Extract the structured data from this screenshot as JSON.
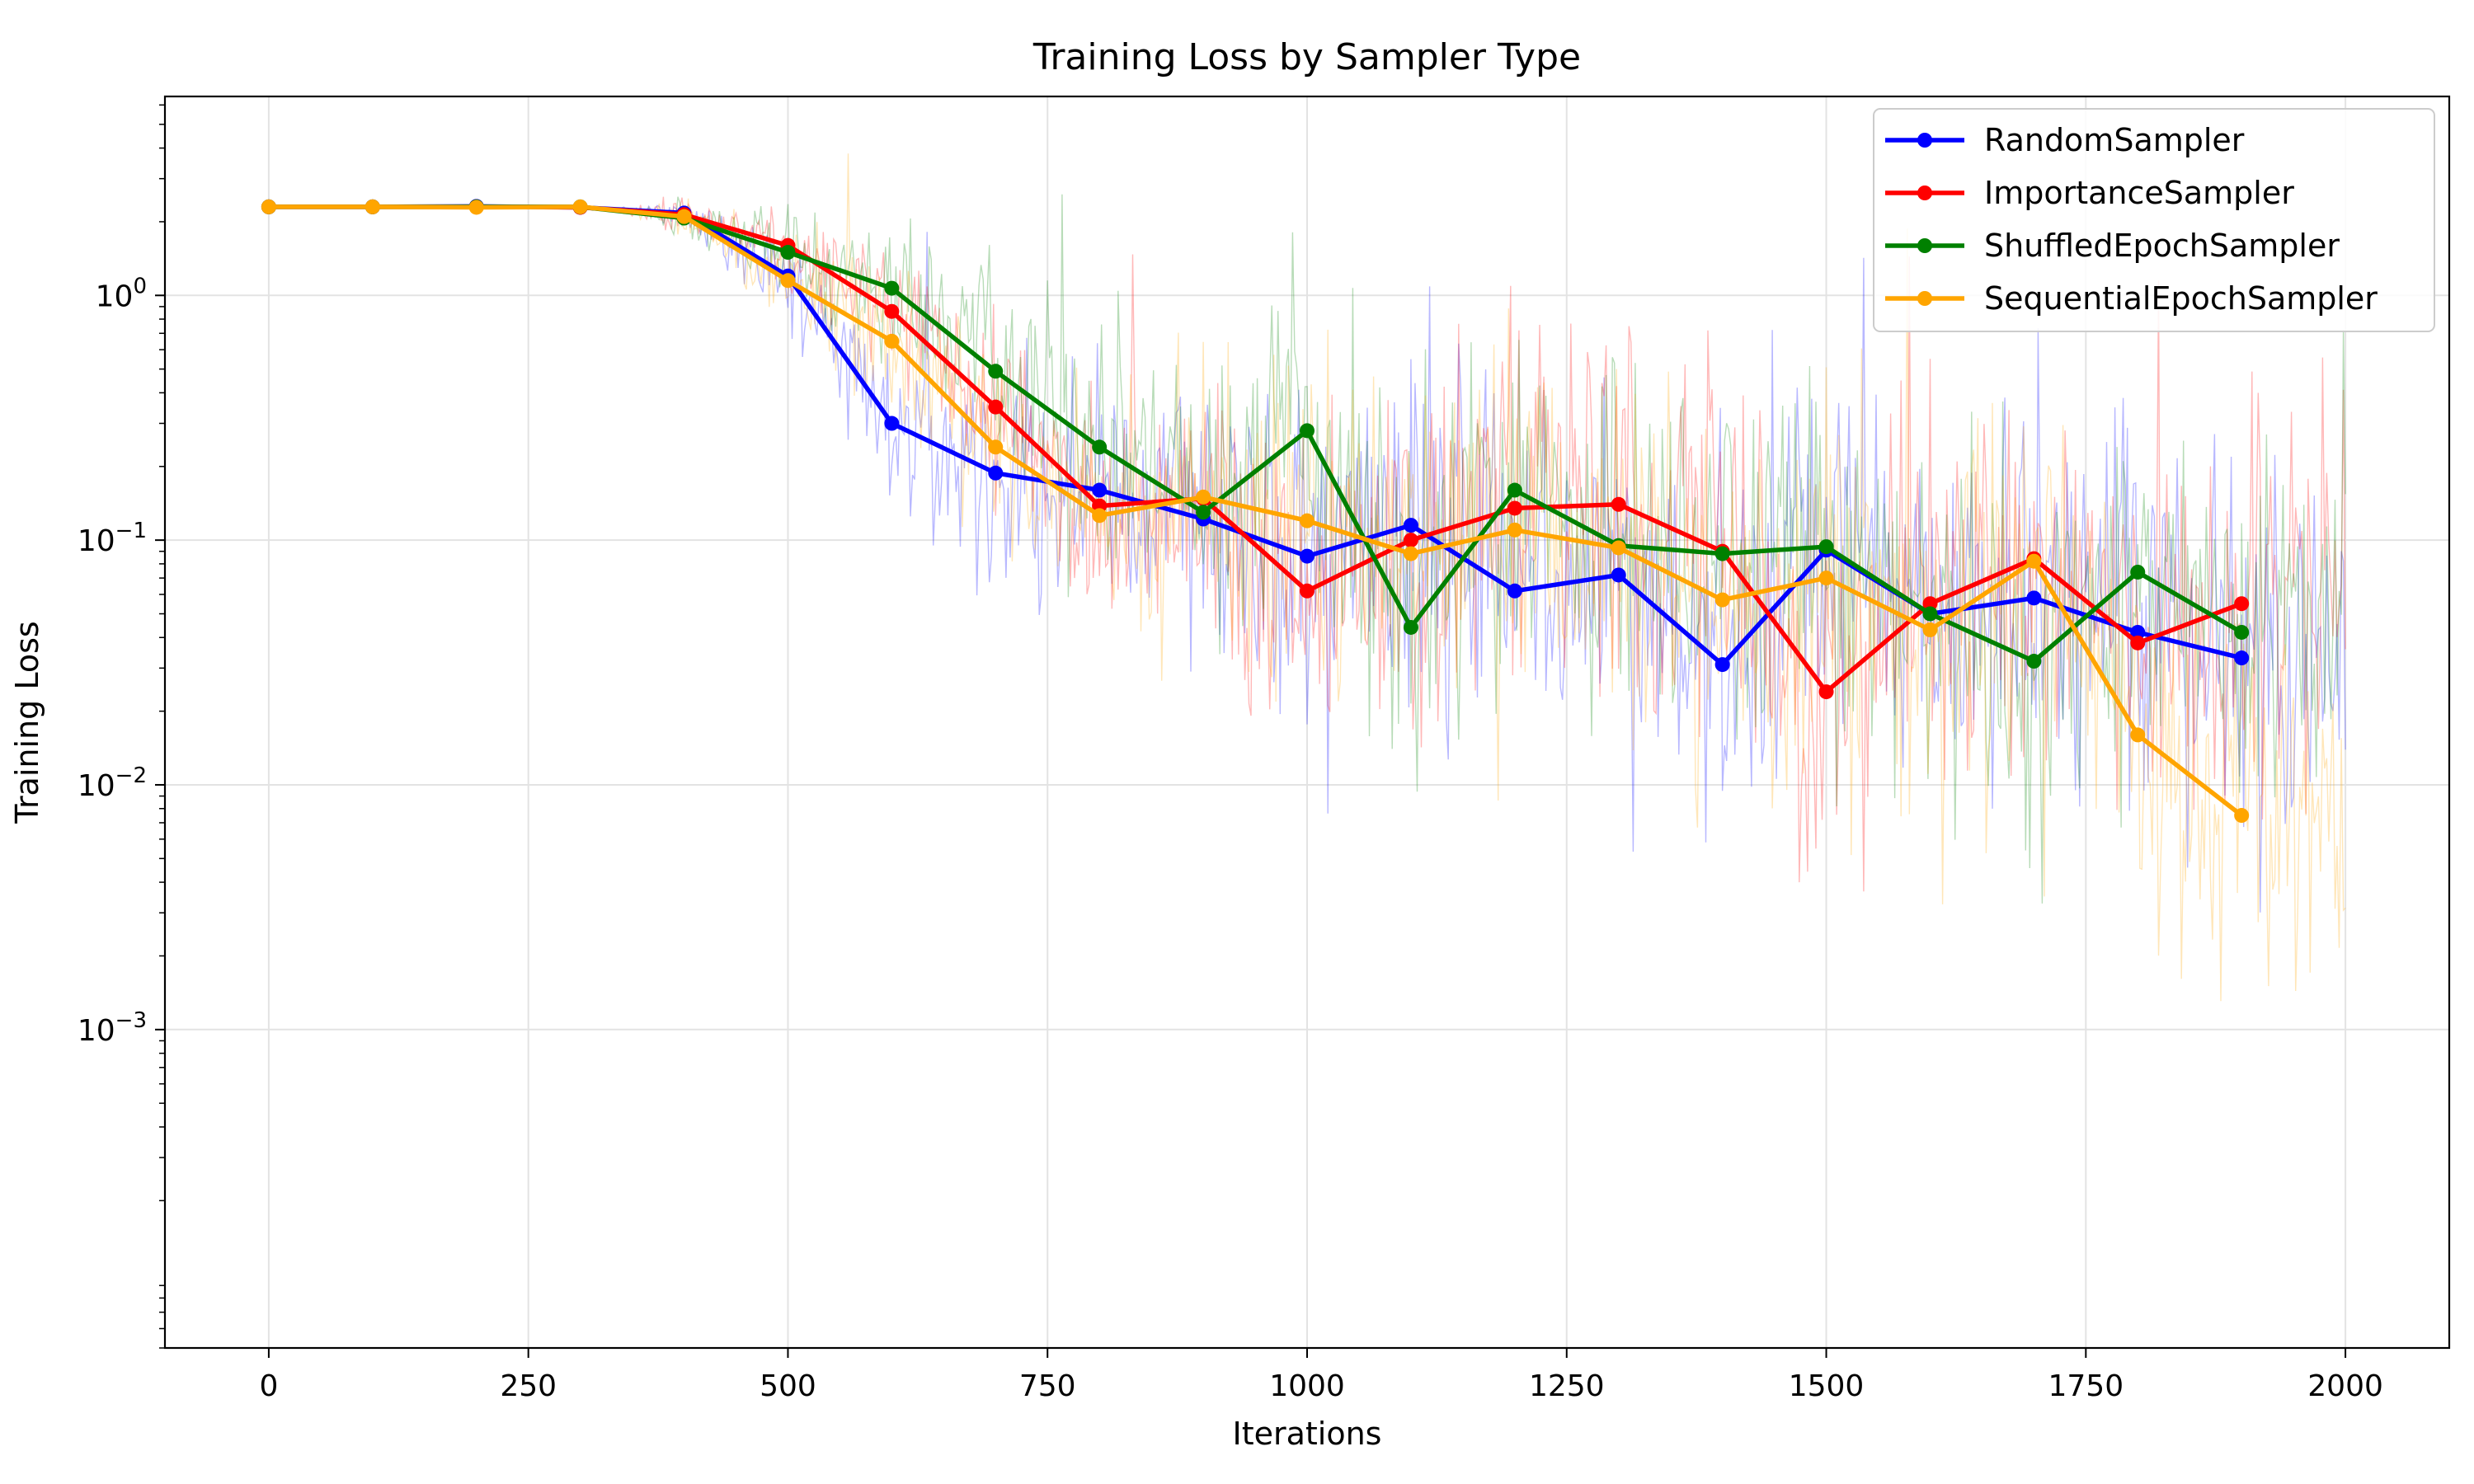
{
  "chart_data": {
    "type": "line",
    "title": "Training Loss by Sampler Type",
    "xlabel": "Iterations",
    "ylabel": "Training Loss",
    "yscale": "log",
    "xlim": [
      -100,
      2100
    ],
    "ylim": [
      5e-05,
      6.5
    ],
    "xticks": [
      0,
      250,
      500,
      750,
      1000,
      1250,
      1500,
      1750,
      2000
    ],
    "xtick_labels": [
      "0",
      "250",
      "500",
      "750",
      "1000",
      "1250",
      "1500",
      "1750",
      "2000"
    ],
    "yticks": [
      {
        "value": 1,
        "base": "10",
        "exp": "0"
      },
      {
        "value": 0.1,
        "base": "10",
        "exp": "−1"
      },
      {
        "value": 0.01,
        "base": "10",
        "exp": "−2"
      },
      {
        "value": 0.001,
        "base": "10",
        "exp": "−3"
      }
    ],
    "grid": true,
    "legend_position": "top-right",
    "x": [
      0,
      100,
      200,
      300,
      400,
      500,
      600,
      700,
      800,
      900,
      1000,
      1100,
      1200,
      1300,
      1400,
      1500,
      1600,
      1700,
      1800,
      1900
    ],
    "series": [
      {
        "name": "RandomSampler",
        "color": "#0000ff",
        "values": [
          2.3,
          2.3,
          2.31,
          2.29,
          2.17,
          1.2,
          0.3,
          0.188,
          0.16,
          0.122,
          0.086,
          0.115,
          0.062,
          0.072,
          0.031,
          0.091,
          0.05,
          0.058,
          0.042,
          0.033
        ]
      },
      {
        "name": "ImportanceSampler",
        "color": "#ff0000",
        "values": [
          2.3,
          2.3,
          2.3,
          2.29,
          2.14,
          1.6,
          0.86,
          0.35,
          0.138,
          0.148,
          0.062,
          0.1,
          0.135,
          0.14,
          0.09,
          0.024,
          0.055,
          0.084,
          0.038,
          0.055
        ]
      },
      {
        "name": "ShuffledEpochSampler",
        "color": "#008000",
        "values": [
          2.3,
          2.3,
          2.3,
          2.3,
          2.07,
          1.5,
          1.07,
          0.49,
          0.24,
          0.13,
          0.28,
          0.044,
          0.16,
          0.095,
          0.088,
          0.094,
          0.05,
          0.032,
          0.074,
          0.042
        ]
      },
      {
        "name": "SequentialEpochSampler",
        "color": "#ffa500",
        "values": [
          2.3,
          2.3,
          2.29,
          2.3,
          2.1,
          1.15,
          0.65,
          0.24,
          0.126,
          0.15,
          0.12,
          0.088,
          0.11,
          0.093,
          0.057,
          0.07,
          0.043,
          0.082,
          0.016,
          0.0075
        ]
      }
    ]
  }
}
